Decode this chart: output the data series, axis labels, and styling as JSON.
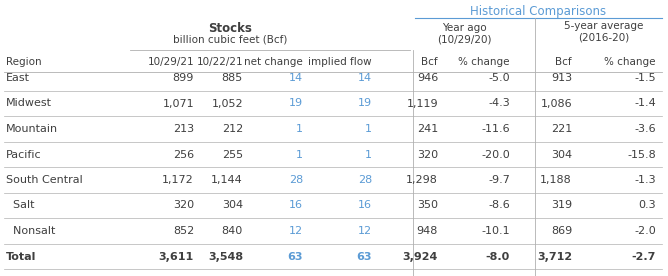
{
  "title_stocks": "Stocks",
  "subtitle_stocks": "billion cubic feet (Bcf)",
  "title_historical": "Historical Comparisons",
  "rows": [
    {
      "region": "East",
      "indent": false,
      "bold": false,
      "v1": "899",
      "v2": "885",
      "nc": "14",
      "if_": "14",
      "bcf1": "946",
      "pct1": "-5.0",
      "bcf2": "913",
      "pct2": "-1.5"
    },
    {
      "region": "Midwest",
      "indent": false,
      "bold": false,
      "v1": "1,071",
      "v2": "1,052",
      "nc": "19",
      "if_": "19",
      "bcf1": "1,119",
      "pct1": "-4.3",
      "bcf2": "1,086",
      "pct2": "-1.4"
    },
    {
      "region": "Mountain",
      "indent": false,
      "bold": false,
      "v1": "213",
      "v2": "212",
      "nc": "1",
      "if_": "1",
      "bcf1": "241",
      "pct1": "-11.6",
      "bcf2": "221",
      "pct2": "-3.6"
    },
    {
      "region": "Pacific",
      "indent": false,
      "bold": false,
      "v1": "256",
      "v2": "255",
      "nc": "1",
      "if_": "1",
      "bcf1": "320",
      "pct1": "-20.0",
      "bcf2": "304",
      "pct2": "-15.8"
    },
    {
      "region": "South Central",
      "indent": false,
      "bold": false,
      "v1": "1,172",
      "v2": "1,144",
      "nc": "28",
      "if_": "28",
      "bcf1": "1,298",
      "pct1": "-9.7",
      "bcf2": "1,188",
      "pct2": "-1.3"
    },
    {
      "region": "Salt",
      "indent": true,
      "bold": false,
      "v1": "320",
      "v2": "304",
      "nc": "16",
      "if_": "16",
      "bcf1": "350",
      "pct1": "-8.6",
      "bcf2": "319",
      "pct2": "0.3"
    },
    {
      "region": "Nonsalt",
      "indent": true,
      "bold": false,
      "v1": "852",
      "v2": "840",
      "nc": "12",
      "if_": "12",
      "bcf1": "948",
      "pct1": "-10.1",
      "bcf2": "869",
      "pct2": "-2.0"
    },
    {
      "region": "Total",
      "indent": false,
      "bold": true,
      "v1": "3,611",
      "v2": "3,548",
      "nc": "63",
      "if_": "63",
      "bcf1": "3,924",
      "pct1": "-8.0",
      "bcf2": "3,712",
      "pct2": "-2.7"
    }
  ],
  "blue_color": "#5b9bd5",
  "text_color": "#3f3f3f",
  "line_color": "#b0b0b0",
  "bg_color": "#ffffff",
  "figsize": [
    6.68,
    2.76
  ],
  "dpi": 100
}
